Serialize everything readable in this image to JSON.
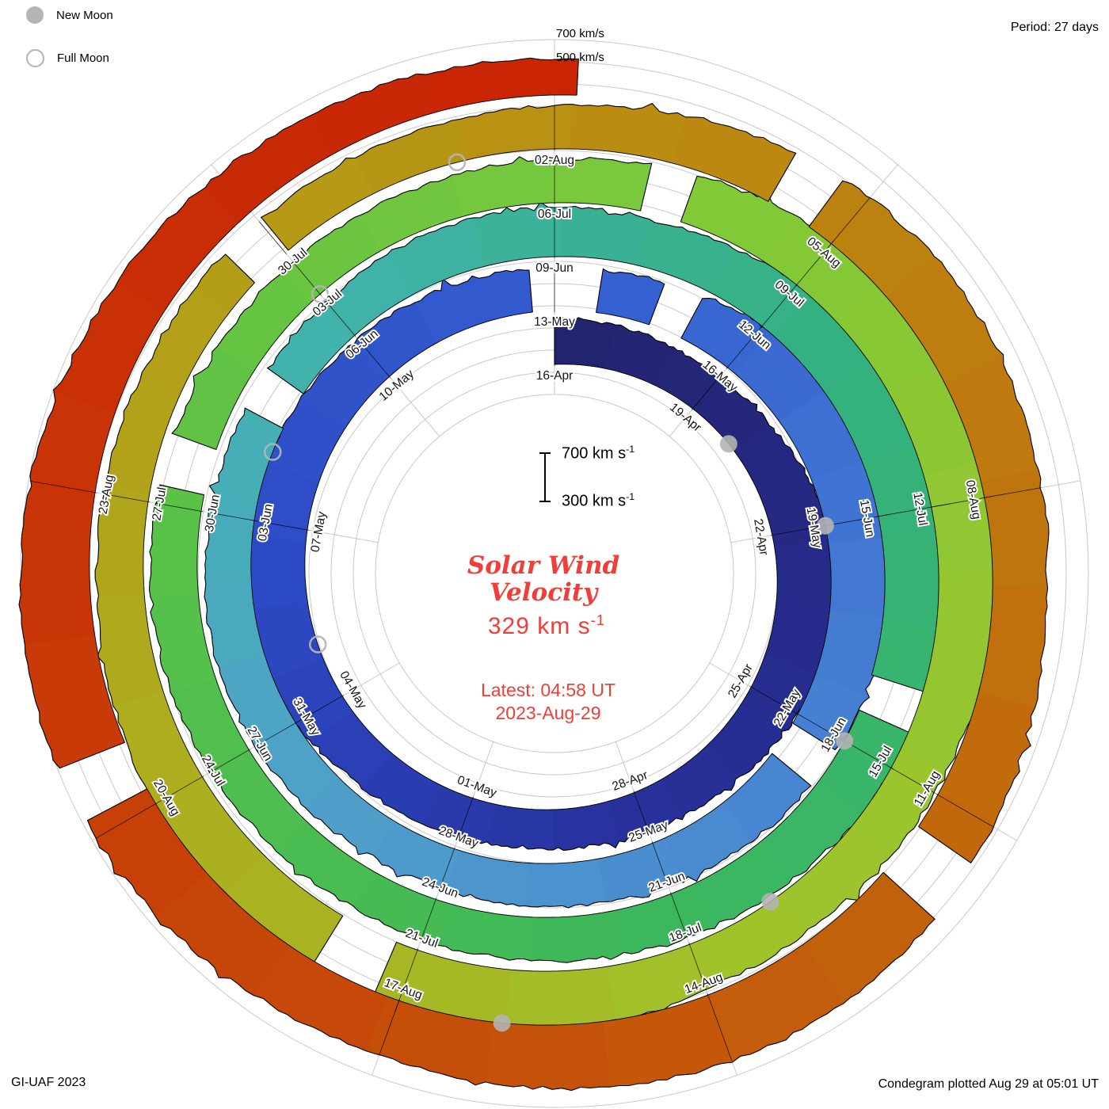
{
  "colors": {
    "accent": "#ef3f38",
    "moon": "#b4b4b4",
    "grid": "#c9c9c9",
    "band_edge": "#000000"
  },
  "header": {
    "period": "Period: 27 days"
  },
  "legend": {
    "new_moon": "New Moon",
    "full_moon": "Full Moon"
  },
  "axis": {
    "label_700": "700 km/s",
    "label_500": "500 km/s"
  },
  "center": {
    "title1": "Solar Wind",
    "title2": "Velocity",
    "value": "329 km s",
    "value_exp": "-1",
    "latest1": "Latest: 04:58 UT",
    "latest2": "2023-Aug-29",
    "bar_top": "700 km s",
    "bar_top_exp": "-1",
    "bar_bottom": "300 km s",
    "bar_bottom_exp": "-1"
  },
  "footer": {
    "left": "GI-UAF 2023",
    "right": "Condegram plotted Aug 29 at 05:01 UT"
  },
  "chart_data": {
    "type": "area",
    "subtype": "spiral-condegram",
    "title": "Solar Wind Velocity",
    "units": "km/s",
    "period_days": 27,
    "start_date": "2023-04-16",
    "end_date_time": "2023-08-29 04:58 UT",
    "total_days": 135.2,
    "latest_velocity": 329,
    "radial_scale_reference": [
      300,
      700
    ],
    "grid_circle_labels": [
      "700 km/s",
      "500 km/s"
    ],
    "label_step_days": 3,
    "date_labels": [
      "16-Apr",
      "19-Apr",
      "22-Apr",
      "25-Apr",
      "28-Apr",
      "01-May",
      "04-May",
      "07-May",
      "10-May",
      "13-May",
      "16-May",
      "19-May",
      "22-May",
      "25-May",
      "28-May",
      "31-May",
      "03-Jun",
      "06-Jun",
      "09-Jun",
      "12-Jun",
      "15-Jun",
      "18-Jun",
      "21-Jun",
      "24-Jun",
      "27-Jun",
      "30-Jun",
      "03-Jul",
      "06-Jul",
      "09-Jul",
      "12-Jul",
      "15-Jul",
      "18-Jul",
      "21-Jul",
      "24-Jul",
      "27-Jul",
      "30-Jul",
      "02-Aug",
      "05-Aug",
      "08-Aug",
      "11-Aug",
      "14-Aug",
      "17-Aug",
      "20-Aug",
      "23-Aug"
    ],
    "daily_velocity": [
      420,
      400,
      380,
      370,
      390,
      450,
      520,
      560,
      540,
      480,
      430,
      400,
      380,
      360,
      350,
      370,
      390,
      420,
      480,
      520,
      540,
      530,
      500,
      470,
      440,
      420,
      400,
      380,
      390,
      420,
      480,
      560,
      610,
      590,
      540,
      500,
      470,
      450,
      430,
      410,
      390,
      380,
      370,
      380,
      400,
      420,
      430,
      420,
      400,
      390,
      380,
      400,
      430,
      450,
      440,
      420,
      440,
      500,
      580,
      640,
      660,
      620,
      560,
      510,
      470,
      440,
      420,
      400,
      390,
      380,
      370,
      380,
      400,
      420,
      430,
      420,
      400,
      390,
      380,
      370,
      380,
      400,
      430,
      470,
      520,
      560,
      580,
      560,
      530,
      490,
      460,
      430,
      410,
      440,
      500,
      560,
      600,
      580,
      540,
      500,
      460,
      430,
      410,
      390,
      380,
      370,
      360,
      370,
      390,
      430,
      490,
      540,
      570,
      550,
      520,
      490,
      520,
      570,
      620,
      650,
      630,
      590,
      550,
      520,
      540,
      580,
      620,
      650,
      630,
      590,
      540,
      490,
      440,
      400,
      360,
      329
    ],
    "data_gap_days": [
      [
        26.7,
        27.6
      ],
      [
        28.6,
        29.1
      ],
      [
        36.2,
        36.7
      ],
      [
        49.4,
        49.9
      ],
      [
        62.1,
        62.5
      ],
      [
        75.2,
        75.7
      ],
      [
        82.0,
        82.4
      ],
      [
        96.3,
        96.8
      ],
      [
        104.6,
        105.0
      ],
      [
        110.3,
        110.7
      ],
      [
        117.4,
        117.9
      ],
      [
        126.2,
        126.6
      ]
    ],
    "moons": {
      "new_moon_days": [
        4,
        33,
        63,
        92,
        122
      ],
      "full_moon_days": [
        19,
        49,
        78,
        107
      ]
    },
    "color_stops": [
      [
        0,
        "#23236e"
      ],
      [
        12,
        "#28309b"
      ],
      [
        20,
        "#2c49c4"
      ],
      [
        28,
        "#3560d2"
      ],
      [
        36,
        "#4781d2"
      ],
      [
        44,
        "#4fa0ca"
      ],
      [
        50,
        "#43b2b0"
      ],
      [
        58,
        "#33b180"
      ],
      [
        67,
        "#3db85a"
      ],
      [
        75,
        "#5ac247"
      ],
      [
        83,
        "#82c938"
      ],
      [
        92,
        "#9fc42b"
      ],
      [
        100,
        "#aeab1e"
      ],
      [
        107,
        "#b89413"
      ],
      [
        114,
        "#bf770e"
      ],
      [
        121,
        "#c4550a"
      ],
      [
        128,
        "#c83607"
      ],
      [
        136,
        "#ca2105"
      ]
    ]
  }
}
